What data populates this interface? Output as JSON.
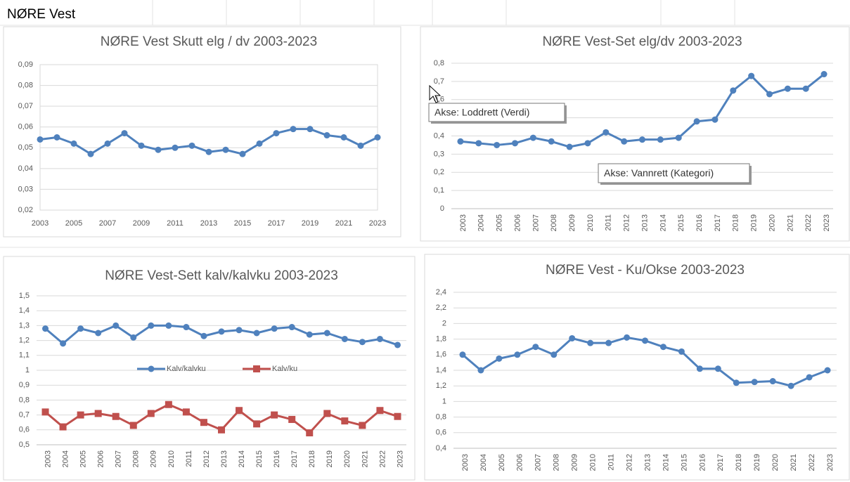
{
  "header": "NØRE Vest",
  "tooltips": [
    "Akse: Loddrett (Verdi)",
    "Akse: Vannrett (Kategori)"
  ],
  "chart_data": [
    {
      "type": "line",
      "title": "NØRE Vest Skutt elg / dv 2003-2023",
      "color": "#4f81bd",
      "marker": "circle",
      "x": [
        2003,
        2004,
        2005,
        2006,
        2007,
        2008,
        2009,
        2010,
        2011,
        2012,
        2013,
        2014,
        2015,
        2016,
        2017,
        2018,
        2019,
        2020,
        2021,
        2022,
        2023
      ],
      "values": [
        0.054,
        0.055,
        0.052,
        0.047,
        0.052,
        0.057,
        0.051,
        0.049,
        0.05,
        0.051,
        0.048,
        0.049,
        0.047,
        0.052,
        0.057,
        0.059,
        0.059,
        0.056,
        0.055,
        0.051,
        0.055
      ],
      "xlim": [
        2003,
        2023
      ],
      "xticks": [
        2003,
        2005,
        2007,
        2009,
        2011,
        2013,
        2015,
        2017,
        2019,
        2021,
        2023
      ],
      "ylim": [
        0.02,
        0.09
      ],
      "yticks": [
        {
          "value": 0.02,
          "label": "0,02"
        },
        {
          "value": 0.03,
          "label": "0,03"
        },
        {
          "value": 0.04,
          "label": "0,04"
        },
        {
          "value": 0.05,
          "label": "0,05"
        },
        {
          "value": 0.06,
          "label": "0,06"
        },
        {
          "value": 0.07,
          "label": "0,07"
        },
        {
          "value": 0.08,
          "label": "0,08"
        },
        {
          "value": 0.09,
          "label": "0,09"
        }
      ],
      "grid": true
    },
    {
      "type": "line",
      "title": "NØRE Vest-Set elg/dv 2003-2023",
      "color": "#4f81bd",
      "marker": "circle",
      "categories": [
        "2003",
        "2004",
        "2005",
        "2006",
        "2007",
        "2008",
        "2009",
        "2010",
        "2011",
        "2012",
        "2013",
        "2014",
        "2015",
        "2016",
        "2017",
        "2018",
        "2019",
        "2020",
        "2021",
        "2022",
        "2023"
      ],
      "values": [
        0.37,
        0.36,
        0.35,
        0.36,
        0.39,
        0.37,
        0.34,
        0.36,
        0.42,
        0.37,
        0.38,
        0.38,
        0.39,
        0.48,
        0.49,
        0.65,
        0.73,
        0.63,
        0.66,
        0.66,
        0.74
      ],
      "ylim": [
        0,
        0.8
      ],
      "yticks": [
        0,
        {
          "value": 0.1,
          "label": "0,1"
        },
        {
          "value": 0.2,
          "label": "0,2"
        },
        {
          "value": 0.3,
          "label": "0,3"
        },
        {
          "value": 0.4,
          "label": "0,4"
        },
        {
          "value": 0.5,
          "label": "0,5"
        },
        {
          "value": 0.6,
          "label": "0,6"
        },
        {
          "value": 0.7,
          "label": "0,7"
        },
        {
          "value": 0.8,
          "label": "0,8"
        }
      ],
      "grid": true
    },
    {
      "type": "line",
      "title": "NØRE Vest-Sett kalv/kalvku 2003-2023",
      "legend": "center",
      "categories": [
        "2003",
        "2004",
        "2005",
        "2006",
        "2007",
        "2008",
        "2009",
        "2010",
        "2011",
        "2012",
        "2013",
        "2014",
        "2015",
        "2016",
        "2017",
        "2018",
        "2019",
        "2020",
        "2021",
        "2022",
        "2023"
      ],
      "series": [
        {
          "name": "Kalv/kalvku",
          "color": "#4f81bd",
          "marker": "circle",
          "values": [
            1.28,
            1.18,
            1.28,
            1.25,
            1.3,
            1.22,
            1.3,
            1.3,
            1.29,
            1.23,
            1.26,
            1.27,
            1.25,
            1.28,
            1.29,
            1.24,
            1.25,
            1.21,
            1.19,
            1.21,
            1.17
          ]
        },
        {
          "name": "Kalv/ku",
          "color": "#c0504d",
          "marker": "square",
          "values": [
            0.72,
            0.62,
            0.7,
            0.71,
            0.69,
            0.63,
            0.71,
            0.77,
            0.72,
            0.65,
            0.6,
            0.73,
            0.64,
            0.7,
            0.67,
            0.58,
            0.71,
            0.66,
            0.63,
            0.73,
            0.69
          ]
        }
      ],
      "ylim": [
        0.5,
        1.5
      ],
      "yticks": [
        {
          "value": 0.5,
          "label": "0,5"
        },
        {
          "value": 0.6,
          "label": "0,6"
        },
        {
          "value": 0.7,
          "label": "0,7"
        },
        {
          "value": 0.8,
          "label": "0,8"
        },
        {
          "value": 0.9,
          "label": "0,9"
        },
        1,
        {
          "value": 1.1,
          "label": "1,1"
        },
        {
          "value": 1.2,
          "label": "1,2"
        },
        {
          "value": 1.3,
          "label": "1,3"
        },
        {
          "value": 1.4,
          "label": "1,4"
        },
        {
          "value": 1.5,
          "label": "1,5"
        }
      ],
      "grid": true
    },
    {
      "type": "line",
      "title": "NØRE Vest - Ku/Okse 2003-2023",
      "color": "#4f81bd",
      "marker": "circle",
      "categories": [
        "2003",
        "2004",
        "2005",
        "2006",
        "2007",
        "2008",
        "2009",
        "2010",
        "2011",
        "2012",
        "2013",
        "2014",
        "2015",
        "2016",
        "2017",
        "2018",
        "2019",
        "2020",
        "2021",
        "2022",
        "2023"
      ],
      "values": [
        1.6,
        1.4,
        1.55,
        1.6,
        1.7,
        1.6,
        1.81,
        1.75,
        1.75,
        1.82,
        1.78,
        1.7,
        1.64,
        1.42,
        1.42,
        1.24,
        1.25,
        1.26,
        1.2,
        1.31,
        1.4
      ],
      "ylim": [
        0.4,
        2.4
      ],
      "yticks": [
        {
          "value": 0.4,
          "label": "0,4"
        },
        {
          "value": 0.6,
          "label": "0,6"
        },
        {
          "value": 0.8,
          "label": "0,8"
        },
        1,
        {
          "value": 1.2,
          "label": "1,2"
        },
        {
          "value": 1.4,
          "label": "1,4"
        },
        {
          "value": 1.6,
          "label": "1,6"
        },
        {
          "value": 1.8,
          "label": "1,8"
        },
        2,
        {
          "value": 2.2,
          "label": "2,2"
        },
        {
          "value": 2.4,
          "label": "2,4"
        }
      ],
      "grid": true
    }
  ]
}
